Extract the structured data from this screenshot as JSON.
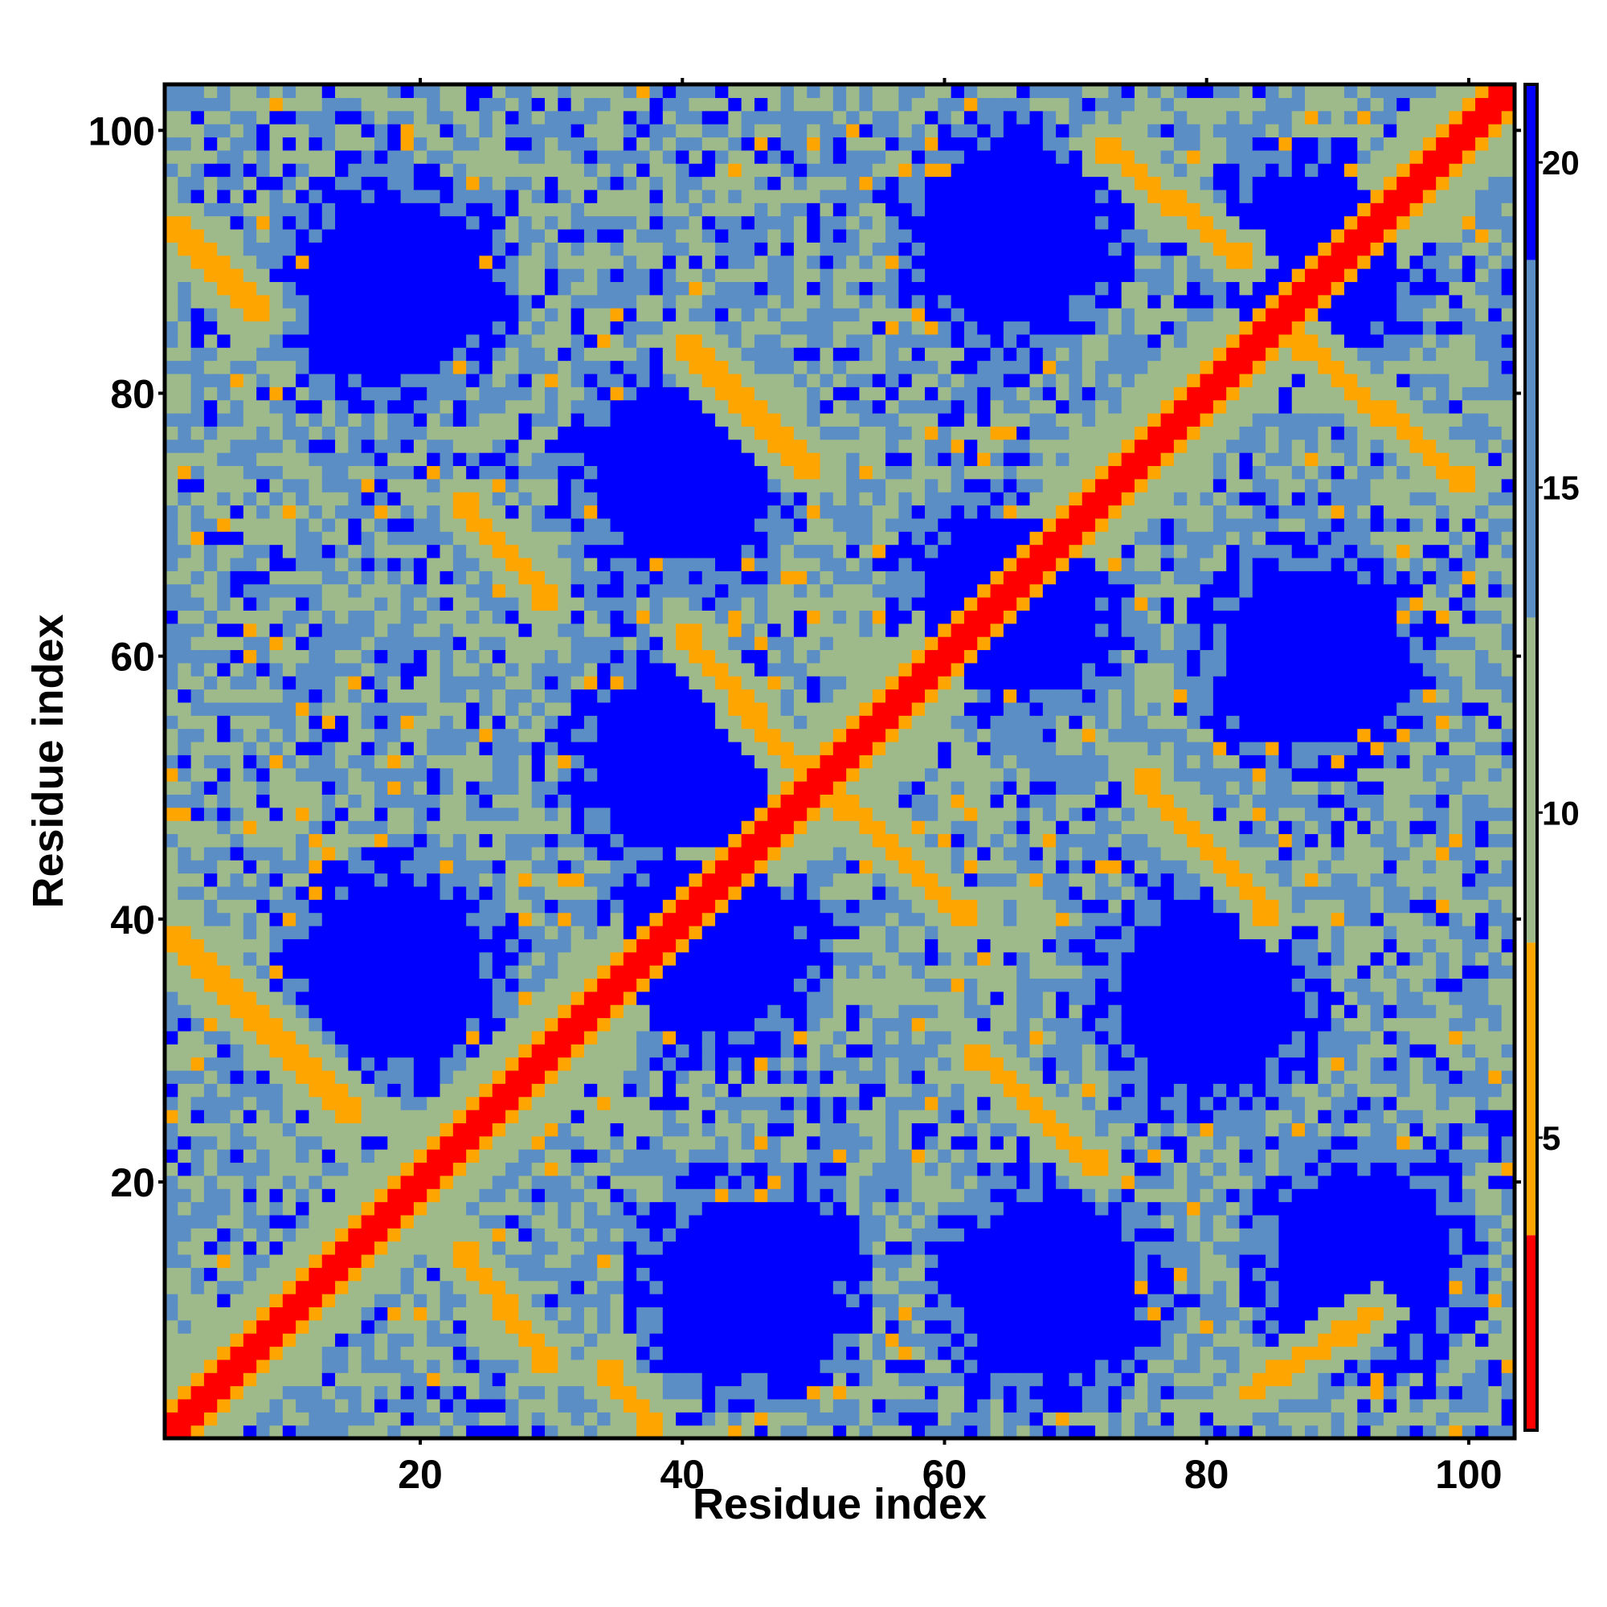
{
  "chart_data": {
    "type": "heatmap",
    "title": "",
    "xlabel": "Residue index",
    "ylabel": "Residue index",
    "x_range": [
      0.5,
      103.5
    ],
    "y_range": [
      0.5,
      103.5
    ],
    "n_residues": 103,
    "x_ticks": [
      20,
      40,
      60,
      80,
      100
    ],
    "y_ticks": [
      20,
      40,
      60,
      80,
      100
    ],
    "x_tick_labels": [
      "20",
      "40",
      "60",
      "80",
      "100"
    ],
    "y_tick_labels": [
      "20",
      "40",
      "60",
      "80",
      "100"
    ],
    "colorbar": {
      "range": [
        0.5,
        21.2
      ],
      "ticks": [
        5,
        10,
        15,
        20
      ],
      "tick_labels": [
        "5",
        "10",
        "15",
        "20"
      ],
      "colors": [
        {
          "min": 0.5,
          "max": 3.5,
          "color": "#ff0000"
        },
        {
          "min": 3.5,
          "max": 8,
          "color": "#ffa500"
        },
        {
          "min": 8,
          "max": 13,
          "color": "#9fba8a"
        },
        {
          "min": 13,
          "max": 18.5,
          "color": "#5b8ec4"
        },
        {
          "min": 18.5,
          "max": 21.2,
          "color": "#0000ff"
        }
      ]
    },
    "features": {
      "main_diagonal": {
        "description_values": "distance 0 to 2 along i = j",
        "value": 1.5
      },
      "anti_diagonal_bands": [
        {
          "from": [
            1,
            93
          ],
          "to": [
            8,
            86
          ],
          "value": 6
        },
        {
          "from": [
            23,
            72
          ],
          "to": [
            30,
            64
          ],
          "value": 6
        },
        {
          "from": [
            40,
            84
          ],
          "to": [
            50,
            74
          ],
          "value": 6
        },
        {
          "from": [
            40,
            62
          ],
          "to": [
            50,
            50
          ],
          "value": 6
        },
        {
          "from": [
            52,
            49
          ],
          "to": [
            62,
            40
          ],
          "value": 6
        },
        {
          "from": [
            72,
            99
          ],
          "to": [
            83,
            90
          ],
          "value": 6
        },
        {
          "from": [
            87,
            84
          ],
          "to": [
            100,
            73
          ],
          "value": 6
        },
        {
          "from": [
            75,
            51
          ],
          "to": [
            85,
            40
          ],
          "value": 6
        },
        {
          "from": [
            62,
            30
          ],
          "to": [
            72,
            21
          ],
          "value": 6
        },
        {
          "from": [
            1,
            39
          ],
          "to": [
            15,
            25
          ],
          "value": 6
        },
        {
          "from": [
            23,
            15
          ],
          "to": [
            30,
            6
          ],
          "value": 6
        },
        {
          "from": [
            34,
            6
          ],
          "to": [
            38,
            1
          ],
          "value": 6
        },
        {
          "from": [
            83,
            4
          ],
          "to": [
            93,
            10
          ],
          "value": 6
        }
      ],
      "blue_void_centers": [
        [
          18,
          88
        ],
        [
          40,
          74
        ],
        [
          65,
          92
        ],
        [
          88,
          90
        ],
        [
          40,
          52
        ],
        [
          65,
          64
        ],
        [
          88,
          60
        ],
        [
          18,
          36
        ],
        [
          42,
          38
        ],
        [
          80,
          34
        ],
        [
          45,
          12
        ],
        [
          68,
          12
        ],
        [
          92,
          14
        ]
      ]
    }
  }
}
